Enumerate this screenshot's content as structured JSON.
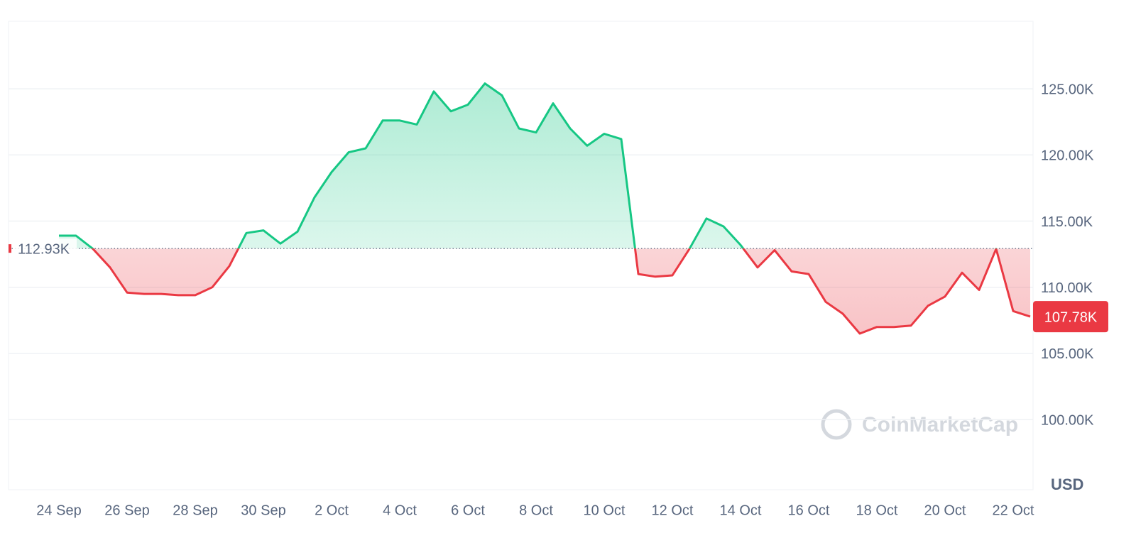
{
  "chart_data": {
    "type": "line",
    "categories": [
      "24 Sep",
      null,
      null,
      null,
      "26 Sep",
      null,
      null,
      null,
      "28 Sep",
      null,
      null,
      null,
      "30 Sep",
      null,
      null,
      null,
      "2 Oct",
      null,
      null,
      null,
      "4 Oct",
      null,
      null,
      null,
      "6 Oct",
      null,
      null,
      null,
      "8 Oct",
      null,
      null,
      null,
      "10 Oct",
      null,
      null,
      null,
      "12 Oct",
      null,
      null,
      null,
      "14 Oct",
      null,
      null,
      null,
      "16 Oct",
      null,
      null,
      null,
      "18 Oct",
      null,
      null,
      null,
      "20 Oct",
      null,
      null,
      null,
      "22 Oct",
      null
    ],
    "values": [
      113.9,
      113.9,
      112.9,
      111.5,
      109.6,
      109.5,
      109.5,
      109.4,
      109.4,
      110.0,
      111.6,
      114.1,
      114.3,
      113.3,
      114.2,
      116.8,
      118.7,
      120.2,
      120.5,
      122.6,
      122.6,
      122.3,
      124.8,
      123.3,
      123.8,
      125.4,
      124.5,
      122.0,
      121.7,
      123.9,
      122.0,
      120.7,
      121.6,
      121.2,
      111.0,
      110.8,
      110.9,
      112.9,
      115.2,
      114.6,
      113.2,
      111.5,
      112.8,
      111.2,
      111.0,
      108.9,
      108.0,
      106.5,
      107.0,
      107.0,
      107.1,
      108.6,
      109.3,
      111.1,
      109.8,
      112.9,
      108.2,
      107.78
    ],
    "baseline": {
      "value": 112.93,
      "label": "112.93K"
    },
    "last_price": {
      "value": 107.78,
      "label": "107.78K"
    },
    "up_color": "#16c784",
    "down_color": "#ea3943",
    "ylim": [
      94.7,
      130.1
    ],
    "yticks": [
      {
        "value": 100,
        "label": "100.00K"
      },
      {
        "value": 105,
        "label": "105.00K"
      },
      {
        "value": 110,
        "label": "110.00K"
      },
      {
        "value": 115,
        "label": "115.00K"
      },
      {
        "value": 120,
        "label": "120.00K"
      },
      {
        "value": 125,
        "label": "125.00K"
      }
    ],
    "y_axis_unit": "USD",
    "watermark": "CoinMarketCap",
    "grid": true
  }
}
